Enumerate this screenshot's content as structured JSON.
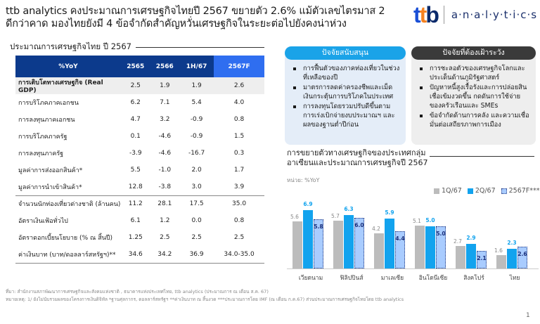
{
  "header": {
    "title_line1": "ttb analytics คงประมาณการเศรษฐกิจไทยปี 2567 ขยายตัว 2.6% แม้ตัวเลขไตรมาส 2",
    "title_line2": "ดีกว่าคาด มองไทยยังมี 4 ข้อจำกัดสำคัญหวั่นเศรษฐกิจในระยะต่อไปยังคงน่าห่วง",
    "logo_ttb": [
      "t",
      "t",
      "b"
    ],
    "logo_analytics": "a·n·a·l·y·t·i·c·s"
  },
  "table_section": {
    "title": "ประมาณการเศรษฐกิจไทย ปี 2567",
    "columns": [
      "%YoY",
      "2565",
      "2566",
      "1H/67",
      "2567F"
    ],
    "rows": [
      {
        "label": "การเติบโตทางเศรษฐกิจ (Real GDP)",
        "values": [
          "2.5",
          "1.9",
          "1.9",
          "2.6"
        ]
      },
      {
        "label": "การบริโภคภาคเอกชน",
        "values": [
          "6.2",
          "7.1",
          "5.4",
          "4.0"
        ]
      },
      {
        "label": "การลงทุนภาคเอกชน",
        "values": [
          "4.7",
          "3.2",
          "-0.9",
          "0.8"
        ]
      },
      {
        "label": "การบริโภคภาครัฐ",
        "values": [
          "0.1",
          "-4.6",
          "-0.9",
          "1.5"
        ]
      },
      {
        "label": "การลงทุนภาครัฐ",
        "values": [
          "-3.9",
          "-4.6",
          "-16.7",
          "0.3"
        ]
      },
      {
        "label": "มูลค่าการส่งออกสินค้า*",
        "values": [
          "5.5",
          "-1.0",
          "2.0",
          "1.7"
        ]
      },
      {
        "label": "มูลค่าการนำเข้าสินค้า*",
        "values": [
          "12.8",
          "-3.8",
          "3.0",
          "3.9"
        ]
      },
      {
        "label": "จำนวนนักท่องเที่ยวต่างชาติ (ล้านคน)",
        "values": [
          "11.2",
          "28.1",
          "17.5",
          "35.0"
        ]
      },
      {
        "label": "อัตราเงินเฟ้อทั่วไป",
        "values": [
          "6.1",
          "1.2",
          "0.0",
          "0.8"
        ]
      },
      {
        "label": "อัตราดอกเบี้ยนโยบาย  (% ณ สิ้นปี)",
        "values": [
          "1.25",
          "2.5",
          "2.5",
          "2.5"
        ]
      },
      {
        "label": "ค่าเงินบาท (บาท/ดอลลาร์สหรัฐฯ)**",
        "values": [
          "34.6",
          "34.2",
          "36.9",
          "34.0-35.0"
        ]
      }
    ]
  },
  "panels": {
    "support": {
      "title": "ปัจจัยสนับสนุน",
      "items": [
        "การฟื้นตัวของภาคท่องเที่ยวในช่วงที่เหลือของปี",
        "มาตรการลดค่าครองชีพและเม็ดเงินกระตุ้นการบริโภคในประเทศ",
        "การลงทุนโดยรวมปรับดีขึ้นตามการเร่งเบิกจ่ายงบประมาณฯ และผลของฐานต่ำปีก่อน"
      ]
    },
    "risk": {
      "title": "ปัจจัยที่ต้องเฝ้าระวัง",
      "items": [
        "การชะลอตัวของเศรษฐกิจโลกและประเด็นด้านภูมิรัฐศาสตร์",
        "ปัญหาหนี้สูงเรื้อรังและการปล่อยสินเชื่อเข้มงวดขึ้น กดดันการใช้จ่ายของครัวเรือนและ SMEs",
        "ข้อจำกัดด้านการคลัง และความเชื่อมั่นต่อเสถียรภาพการเมือง"
      ]
    }
  },
  "chart_section": {
    "title_line1": "การขยายตัวทางเศรษฐกิจของประเทศกลุ่ม",
    "title_line2": "อาเซียนและประมาณการเศรษฐกิจปี 2567",
    "unit": "หน่วย: %YoY"
  },
  "chart_data": {
    "type": "bar",
    "title": "การขยายตัวทางเศรษฐกิจของประเทศกลุ่มอาเซียนและประมาณการเศรษฐกิจปี 2567",
    "ylabel": "หน่วย: %YoY",
    "xlabel": "",
    "categories": [
      "เวียดนาม",
      "ฟิลิปปินส์",
      "มาเลเซีย",
      "อินโดนีเซีย",
      "สิงคโปร์",
      "ไทย"
    ],
    "series": [
      {
        "name": "1Q/67",
        "color": "#bcbcbc",
        "values": [
          5.6,
          5.7,
          4.2,
          5.1,
          2.7,
          1.6
        ]
      },
      {
        "name": "2Q/67",
        "color": "#12a3ee",
        "values": [
          6.9,
          6.3,
          5.9,
          5.0,
          2.9,
          2.3
        ]
      },
      {
        "name": "2567F***",
        "color": "#a9ccff",
        "values": [
          5.8,
          6.0,
          4.4,
          5.0,
          2.1,
          2.6
        ]
      }
    ],
    "ylim": [
      0,
      8
    ],
    "grid": false,
    "legend_position": "top-right",
    "data_labels": true
  },
  "footer": {
    "source": "ที่มา: สำนักงานสภาพัฒนาการเศรษฐกิจและสังคมแห่งชาติ , ธนาคารแห่งประเทศไทย, ttb analytics (ประมาณการ ณ เดือน ส.ค. 67)",
    "note": "หมายเหตุ: 1/ ยังไม่นับรวมผลของโครงการเงินดิจิทัล *ฐานศุลกากร, ดอลลาร์สหรัฐฯ **ค่าเงินบาท ณ สิ้นงวด ***ประมาณการโดย IMF (ณ เดือน ก.ค.67) ส่วนประมาณการเศรษฐกิจไทยโดย ttb analytics",
    "page": "1"
  },
  "colors": {
    "header_blue": "#0c3a8c",
    "forecast_blue": "#2f6ef0",
    "support_blue": "#1aa3e8",
    "risk_dark": "#3a3a3a"
  }
}
